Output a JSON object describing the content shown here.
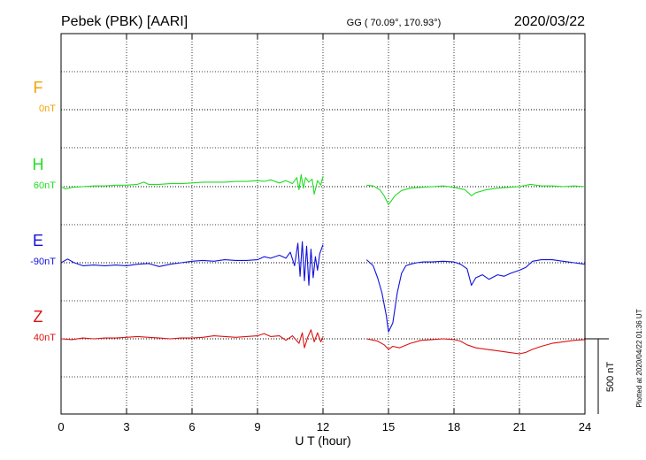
{
  "header": {
    "station": "Pebek (PBK)  [AARI]",
    "coords": "GG ( 70.09°, 170.93°)",
    "date": "2020/03/22"
  },
  "side_note": "Plotted at 2020/04/22 01:36 UT",
  "scale_label": "500 nT",
  "chart_data": {
    "type": "line",
    "xlabel": "U T (hour)",
    "xlim": [
      0,
      24
    ],
    "x_ticks": [
      "0",
      "3",
      "6",
      "9",
      "12",
      "15",
      "18",
      "21",
      "24"
    ],
    "y_unit": "nT",
    "scale_bar_nT": 500,
    "data_gap_hours": [
      12.0,
      14.0
    ],
    "grid": true,
    "series": [
      {
        "name": "F",
        "baseline_label": "0nT",
        "color": "#f5a300",
        "x": [],
        "y": []
      },
      {
        "name": "H",
        "baseline_label": "60nT",
        "color": "#22dd22",
        "x": [
          0,
          0.2,
          0.5,
          1,
          1.5,
          2,
          2.5,
          3,
          3.5,
          3.8,
          4,
          4.5,
          5,
          5.5,
          6,
          6.5,
          7,
          7.5,
          8,
          8.5,
          9,
          9.3,
          9.6,
          10,
          10.3,
          10.6,
          10.8,
          10.9,
          11.0,
          11.1,
          11.2,
          11.35,
          11.5,
          11.6,
          11.75,
          11.9,
          12.0,
          14.0,
          14.3,
          14.6,
          14.8,
          15.0,
          15.1,
          15.3,
          15.6,
          16,
          16.5,
          17,
          17.5,
          18,
          18.5,
          18.8,
          19.0,
          19.5,
          20,
          20.5,
          21,
          21.5,
          22,
          22.5,
          23,
          23.5,
          24
        ],
        "y": [
          0,
          -15,
          -5,
          0,
          5,
          5,
          10,
          10,
          15,
          30,
          15,
          15,
          20,
          20,
          25,
          30,
          30,
          30,
          35,
          35,
          40,
          35,
          45,
          25,
          40,
          20,
          60,
          -20,
          80,
          -10,
          60,
          30,
          50,
          -50,
          40,
          10,
          70,
          10,
          5,
          -20,
          -60,
          -120,
          -100,
          -60,
          -25,
          -10,
          -5,
          0,
          5,
          -5,
          -20,
          -60,
          -40,
          -20,
          -10,
          -5,
          0,
          15,
          5,
          5,
          0,
          5,
          0
        ]
      },
      {
        "name": "E",
        "baseline_label": "-90nT",
        "color": "#1111dd",
        "x": [
          0,
          0.3,
          0.6,
          1,
          1.5,
          2,
          2.5,
          3,
          3.5,
          4,
          4.5,
          5,
          5.5,
          6,
          6.5,
          7,
          7.5,
          8,
          8.5,
          9,
          9.3,
          9.6,
          10,
          10.3,
          10.5,
          10.7,
          10.85,
          10.95,
          11.05,
          11.15,
          11.25,
          11.35,
          11.45,
          11.55,
          11.65,
          11.75,
          11.85,
          12.0,
          14.0,
          14.3,
          14.5,
          14.7,
          14.9,
          15.0,
          15.2,
          15.4,
          15.6,
          15.8,
          16.0,
          16.3,
          16.6,
          17,
          17.5,
          18,
          18.3,
          18.6,
          18.8,
          19.0,
          19.3,
          19.6,
          20,
          20.3,
          20.6,
          21,
          21.3,
          21.6,
          22,
          22.5,
          23,
          23.5,
          24
        ],
        "y": [
          0,
          25,
          0,
          -20,
          -15,
          -20,
          -15,
          -20,
          -10,
          -5,
          -25,
          -10,
          0,
          10,
          15,
          10,
          20,
          15,
          15,
          20,
          40,
          30,
          50,
          30,
          70,
          -20,
          130,
          -90,
          140,
          -120,
          110,
          -150,
          90,
          -100,
          40,
          -50,
          60,
          120,
          20,
          -20,
          -100,
          -200,
          -350,
          -460,
          -400,
          -200,
          -70,
          -20,
          -10,
          0,
          5,
          5,
          10,
          5,
          -10,
          -40,
          -150,
          -100,
          -80,
          -110,
          -80,
          -90,
          -70,
          -50,
          -30,
          10,
          20,
          20,
          10,
          0,
          -10
        ]
      },
      {
        "name": "Z",
        "baseline_label": "40nT",
        "color": "#dd1111",
        "x": [
          0,
          0.5,
          1,
          1.5,
          2,
          2.5,
          3,
          3.5,
          4,
          4.5,
          5,
          5.5,
          6,
          6.5,
          7,
          7.5,
          8,
          8.5,
          9,
          9.3,
          9.6,
          10,
          10.3,
          10.6,
          10.9,
          11.05,
          11.15,
          11.3,
          11.45,
          11.6,
          11.75,
          11.9,
          12.0,
          14.0,
          14.5,
          14.8,
          15.0,
          15.2,
          15.5,
          16,
          16.5,
          17,
          17.5,
          18,
          18.3,
          18.6,
          19.0,
          19.5,
          20,
          20.5,
          21,
          21.3,
          21.6,
          22,
          22.5,
          23,
          23.5,
          24
        ],
        "y": [
          0,
          -5,
          5,
          0,
          5,
          5,
          10,
          15,
          10,
          5,
          0,
          5,
          5,
          10,
          20,
          15,
          10,
          15,
          20,
          35,
          15,
          20,
          -10,
          20,
          -30,
          40,
          -60,
          10,
          60,
          -20,
          40,
          -20,
          10,
          0,
          -15,
          -40,
          -70,
          -50,
          -60,
          -30,
          -10,
          -5,
          0,
          -5,
          -15,
          -40,
          -60,
          -70,
          -80,
          -90,
          -100,
          -90,
          -70,
          -50,
          -30,
          -20,
          -10,
          -5
        ]
      }
    ]
  }
}
